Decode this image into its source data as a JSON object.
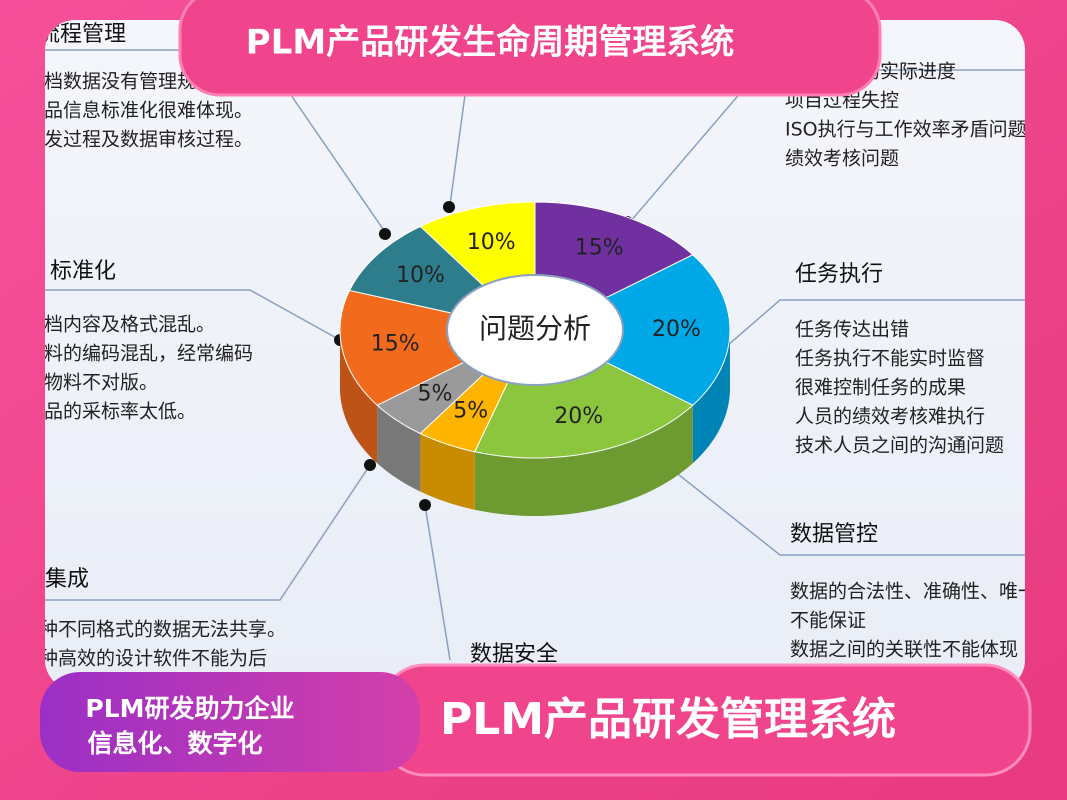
{
  "chart_data": {
    "type": "pie",
    "center_label": "问题分析",
    "categories": [
      null,
      null,
      null,
      null,
      null,
      null,
      null,
      null
    ],
    "values": [
      15,
      20,
      20,
      5,
      5,
      15,
      10,
      10
    ],
    "value_labels": [
      "15%",
      "20%",
      "20%",
      "5%",
      "5%",
      "15%",
      "10%",
      "10%"
    ],
    "colors": [
      "#7030a0",
      "#00a8e8",
      "#8cc63f",
      "#ffb400",
      "#9a9a9a",
      "#f26b1d",
      "#2e7d8c",
      "#ffff00"
    ]
  },
  "header": {
    "title": "PLM产品研发生命周期管理系统"
  },
  "footer": {
    "slogan": [
      "PLM研发助力企业",
      "信息化、数字化"
    ],
    "title": "PLM产品研发管理系统"
  },
  "notes": [
    {
      "heading": "流程管理",
      "lines": [
        "档数据没有管理规范。",
        "品信息标准化很难体现。",
        "发过程及数据审核过程。"
      ]
    },
    {
      "heading": null,
      "lines": [
        "监控项目的实际进度",
        "项目过程失控",
        "ISO执行与工作效率矛盾问题",
        "绩效考核问题"
      ]
    },
    {
      "heading": "标准化",
      "lines": [
        "档内容及格式混乱。",
        "料的编码混乱，经常编码",
        "物料不对版。",
        "品的采标率太低。"
      ]
    },
    {
      "heading": "任务执行",
      "lines": [
        "任务传达出错",
        "任务执行不能实时监督",
        "很难控制任务的成果",
        "人员的绩效考核难执行",
        "技术人员之间的沟通问题"
      ]
    },
    {
      "heading": "数据管控",
      "lines": [
        "数据的合法性、准确性、唯一",
        "不能保证",
        "数据之间的关联性不能体现"
      ]
    },
    {
      "heading": "集成",
      "lines": [
        "种不同格式的数据无法共享。",
        "种高效的设计软件不能为后"
      ]
    },
    {
      "heading": "数据安全",
      "lines": []
    }
  ]
}
